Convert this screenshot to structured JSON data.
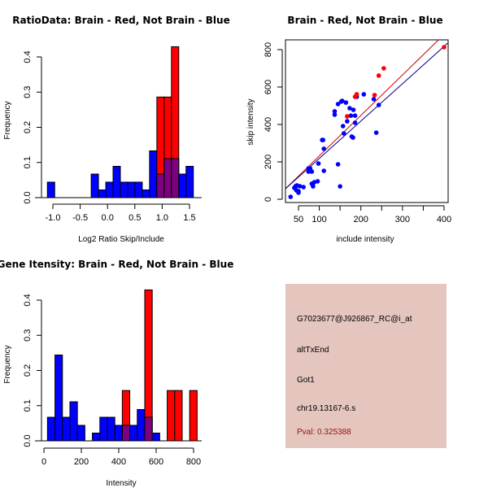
{
  "chart_data": [
    {
      "type": "bar",
      "id": "ratio-hist",
      "title": "RatioData: Brain - Red, Not Brain - Blue",
      "xlabel": "Log2 Ratio Skip/Include",
      "ylabel": "Frequency",
      "xlim": [
        -1.1,
        1.63
      ],
      "ylim": [
        0,
        0.4
      ],
      "xticks": [
        -1.0,
        -0.5,
        0.0,
        0.5,
        1.0,
        1.5
      ],
      "xtick_labels": [
        "-1.0",
        "-0.5",
        "0.0",
        "0.5",
        "1.0",
        "1.5"
      ],
      "yticks": [
        0.0,
        0.1,
        0.2,
        0.3,
        0.4
      ],
      "ytick_labels": [
        "0.0",
        "0.1",
        "0.2",
        "0.3",
        "0.4"
      ],
      "bin_start": -1.1,
      "bin_width": 0.1335,
      "series": [
        {
          "name": "Not Brain",
          "color": "#0000ff",
          "values": [
            0.044,
            0,
            0,
            0,
            0,
            0,
            0.067,
            0.022,
            0.044,
            0.089,
            0.044,
            0.044,
            0.044,
            0.022,
            0.133,
            0.067,
            0.111,
            0.111,
            0.067,
            0.089
          ]
        },
        {
          "name": "Brain",
          "color": "#ff0000",
          "values": [
            0,
            0,
            0,
            0,
            0,
            0,
            0,
            0,
            0,
            0,
            0,
            0,
            0,
            0,
            0,
            0.286,
            0.286,
            0.429,
            0,
            0
          ]
        }
      ],
      "overlap_color": "#7f007f"
    },
    {
      "type": "scatter",
      "id": "intensity-scatter",
      "title": "Brain - Red, Not Brain - Blue",
      "xlabel": "include intensity",
      "ylabel": "skip intensity",
      "xlim": [
        18,
        410
      ],
      "ylim": [
        0,
        855
      ],
      "xticks": [
        50,
        100,
        150,
        200,
        250,
        300,
        350,
        400
      ],
      "xtick_labels": [
        "50",
        "100",
        "",
        "200",
        "",
        "300",
        "",
        "400"
      ],
      "yticks": [
        0,
        200,
        400,
        600,
        800
      ],
      "ytick_labels": [
        "0",
        "200",
        "400",
        "600",
        "800"
      ],
      "series": [
        {
          "name": "Not Brain",
          "color": "#0000ff",
          "points": [
            [
              31,
              13
            ],
            [
              50,
              35
            ],
            [
              50,
              43
            ],
            [
              45,
              48
            ],
            [
              40,
              61
            ],
            [
              43,
              70
            ],
            [
              46,
              74
            ],
            [
              53,
              70
            ],
            [
              62,
              65
            ],
            [
              82,
              83
            ],
            [
              84,
              78
            ],
            [
              88,
              91
            ],
            [
              96,
              96
            ],
            [
              85,
              69
            ],
            [
              150,
              69
            ],
            [
              74,
              148
            ],
            [
              82,
              148
            ],
            [
              74,
              165
            ],
            [
              78,
              165
            ],
            [
              111,
              152
            ],
            [
              98,
              191
            ],
            [
              145,
              187
            ],
            [
              111,
              270
            ],
            [
              107,
              317
            ],
            [
              109,
              317
            ],
            [
              178,
              335
            ],
            [
              181,
              330
            ],
            [
              159,
              352
            ],
            [
              157,
              391
            ],
            [
              167,
              417
            ],
            [
              186,
              409
            ],
            [
              237,
              356
            ],
            [
              176,
              447
            ],
            [
              186,
              447
            ],
            [
              137,
              452
            ],
            [
              137,
              470
            ],
            [
              153,
              522
            ],
            [
              155,
              526
            ],
            [
              164,
              517
            ],
            [
              190,
              548
            ],
            [
              207,
              561
            ],
            [
              173,
              487
            ],
            [
              231,
              535
            ],
            [
              243,
              504
            ],
            [
              145,
              509
            ],
            [
              182,
              478
            ]
          ]
        },
        {
          "name": "Brain",
          "color": "#ff0000",
          "points": [
            [
              167,
              443
            ],
            [
              186,
              548
            ],
            [
              190,
              561
            ],
            [
              233,
              557
            ],
            [
              243,
              661
            ],
            [
              255,
              700
            ],
            [
              400,
              813
            ]
          ]
        }
      ],
      "fit_lines": [
        {
          "name": "Brain fit",
          "color": "#cc0000",
          "from": [
            18.6,
            56
          ],
          "to": [
            389,
            857
          ]
        },
        {
          "name": "Not Brain fit",
          "color": "#00008b",
          "from": [
            18.6,
            56
          ],
          "to": [
            411,
            839
          ]
        }
      ]
    },
    {
      "type": "bar",
      "id": "intensity-hist",
      "title": "Gene Itensity: Brain - Red, Not Brain - Blue",
      "xlabel": "Intensity",
      "ylabel": "Frequency",
      "xlim": [
        -30,
        850
      ],
      "ylim": [
        0,
        0.4
      ],
      "xticks": [
        0,
        200,
        400,
        600,
        800
      ],
      "xtick_labels": [
        "0",
        "200",
        "400",
        "600",
        "800"
      ],
      "yticks": [
        0.0,
        0.1,
        0.2,
        0.3,
        0.4
      ],
      "ytick_labels": [
        "0.0",
        "0.1",
        "0.2",
        "0.3",
        "0.4"
      ],
      "bin_start": 19,
      "bin_width": 40,
      "series": [
        {
          "name": "Not Brain",
          "color": "#0000ff",
          "values": [
            0.067,
            0.244,
            0.067,
            0.111,
            0.044,
            0,
            0.022,
            0.067,
            0.067,
            0.044,
            0.044,
            0.044,
            0.089,
            0.067,
            0.022,
            0,
            0,
            0,
            0,
            0
          ]
        },
        {
          "name": "Brain",
          "color": "#ff0000",
          "values": [
            0,
            0,
            0,
            0,
            0,
            0,
            0,
            0,
            0,
            0,
            0.143,
            0,
            0,
            0.429,
            0,
            0,
            0.143,
            0.143,
            0,
            0.143
          ]
        }
      ],
      "overlap_color": "#7f007f"
    }
  ],
  "info_panel": {
    "probe_id": "G7023677@J926867_RC@i_at",
    "event_type": "altTxEnd",
    "gene": "Got1",
    "location": "chr19.13167-6.s",
    "pval": "Pval: 0.325388",
    "background": "#e4c6bf",
    "pval_color": "#9b1010"
  }
}
